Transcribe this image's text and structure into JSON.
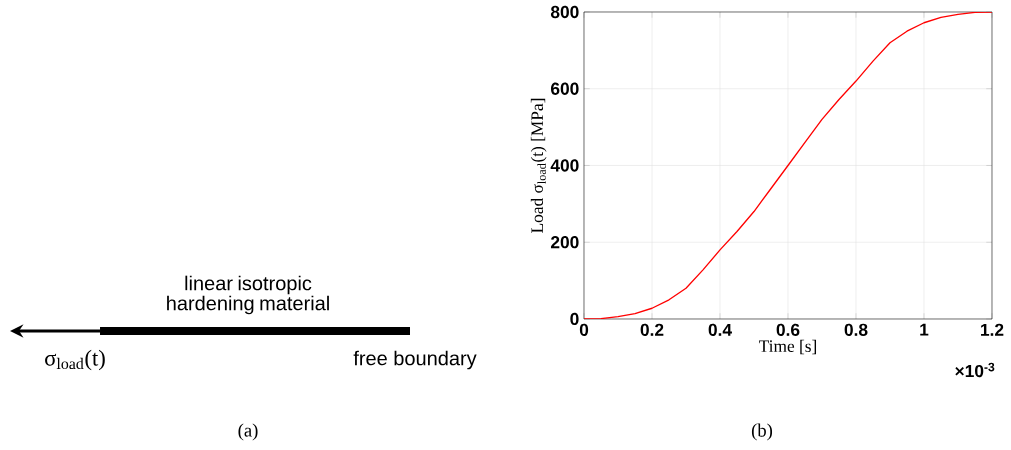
{
  "chart_data": [
    {
      "type": "other",
      "annotations": [
        "linear isotropic hardening material",
        "σ$_{load}$(t)",
        "free boundary",
        "(a)"
      ]
    },
    {
      "type": "line",
      "xlabel": "Time [s]",
      "ylabel": "Load σ$_{load}$(t) [MPa]",
      "x": [
        0,
        0.05,
        0.1,
        0.15,
        0.2,
        0.25,
        0.3,
        0.35,
        0.4,
        0.45,
        0.5,
        0.55,
        0.6,
        0.65,
        0.7,
        0.75,
        0.8,
        0.85,
        0.9,
        0.95,
        1.0,
        1.05,
        1.1,
        1.15,
        1.2
      ],
      "series": [
        {
          "color": "#ff0000",
          "values": [
            0,
            1,
            6,
            14,
            28,
            50,
            80,
            128,
            180,
            228,
            280,
            340,
            400,
            460,
            520,
            572,
            620,
            672,
            720,
            750,
            772,
            786,
            794,
            799,
            800
          ]
        }
      ],
      "xlim": [
        0,
        1.2
      ],
      "ylim": [
        0,
        800
      ],
      "xticks": [
        0,
        0.2,
        0.4,
        0.6,
        0.8,
        1,
        1.2
      ],
      "yticks": [
        0,
        200,
        400,
        600,
        800
      ],
      "grid": true,
      "marker": "none",
      "line_style": "solid",
      "annotations": [
        "×10$^{-3}$",
        "(b)"
      ]
    }
  ]
}
